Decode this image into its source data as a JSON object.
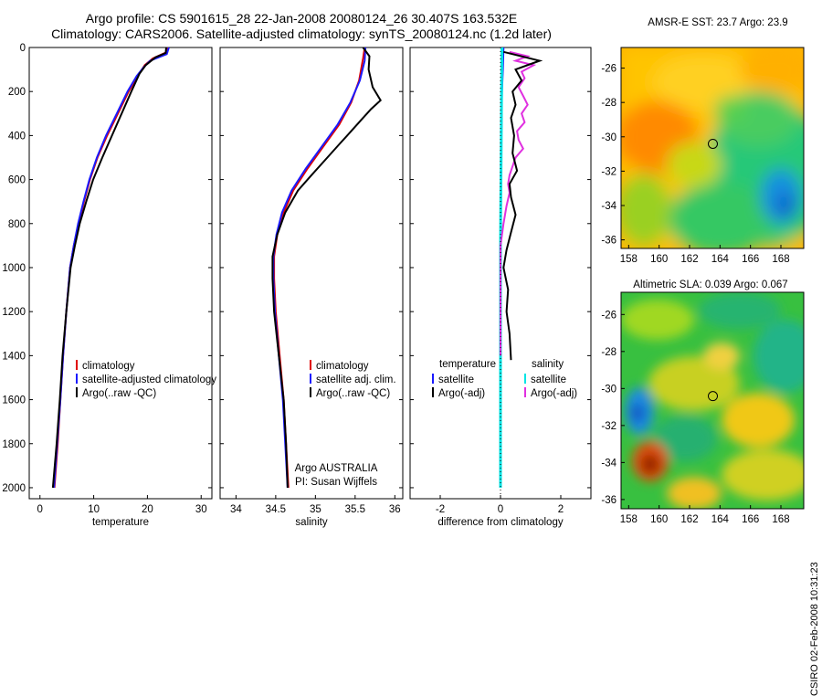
{
  "figure": {
    "title_line1": "Argo profile: CS 5901615_28 22-Jan-2008 20080124_26 30.407S 163.532E",
    "title_line2": "Climatology: CARS2006. Satellite-adjusted climatology: synTS_20080124.nc (1.2d later)",
    "side_label": "CSIRO 02-Feb-2008 10:31:23"
  },
  "colors": {
    "climatology": "#e00000",
    "satellite": "#1a1aff",
    "argo": "#000000",
    "cyan": "#00e5e5",
    "magenta": "#e030e0"
  },
  "chart_data": [
    {
      "type": "line",
      "panel": "temperature",
      "xlabel": "temperature",
      "ylabel": "",
      "xlim": [
        -2,
        32
      ],
      "ylim": [
        2050,
        0
      ],
      "xticks": [
        0,
        10,
        20,
        30
      ],
      "yticks": [
        0,
        200,
        400,
        600,
        800,
        1000,
        1200,
        1400,
        1600,
        1800,
        2000
      ],
      "y_reversed": true,
      "legend": [
        "climatology",
        "satellite-adjusted climatology",
        "Argo(..raw -QC)"
      ],
      "series": [
        {
          "name": "climatology",
          "color": "climatology",
          "points": [
            [
              23.8,
              0
            ],
            [
              23.7,
              20
            ],
            [
              21,
              50
            ],
            [
              19.5,
              80
            ],
            [
              18.2,
              130
            ],
            [
              16.5,
              200
            ],
            [
              14.5,
              300
            ],
            [
              12.5,
              400
            ],
            [
              10.7,
              500
            ],
            [
              9.3,
              600
            ],
            [
              8.2,
              700
            ],
            [
              7.2,
              800
            ],
            [
              6.3,
              900
            ],
            [
              5.6,
              1000
            ],
            [
              4.9,
              1200
            ],
            [
              4.3,
              1400
            ],
            [
              3.8,
              1600
            ],
            [
              3.3,
              1800
            ],
            [
              2.7,
              2000
            ]
          ]
        },
        {
          "name": "satellite-adjusted climatology",
          "color": "satellite",
          "points": [
            [
              24,
              0
            ],
            [
              23.6,
              30
            ],
            [
              20.5,
              60
            ],
            [
              19.3,
              90
            ],
            [
              18,
              130
            ],
            [
              16.3,
              200
            ],
            [
              14.3,
              300
            ],
            [
              12.3,
              400
            ],
            [
              10.6,
              500
            ],
            [
              9.2,
              600
            ],
            [
              8.1,
              700
            ],
            [
              7.1,
              800
            ],
            [
              6.3,
              900
            ],
            [
              5.6,
              1000
            ],
            [
              4.9,
              1200
            ],
            [
              4.3,
              1400
            ],
            [
              3.8,
              1600
            ],
            [
              3.2,
              1800
            ],
            [
              2.6,
              2000
            ]
          ]
        },
        {
          "name": "Argo(..raw -QC)",
          "color": "argo",
          "points": [
            [
              23.5,
              0
            ],
            [
              23.4,
              25
            ],
            [
              21.5,
              45
            ],
            [
              19.7,
              80
            ],
            [
              18.5,
              120
            ],
            [
              17,
              200
            ],
            [
              15.2,
              300
            ],
            [
              13.4,
              400
            ],
            [
              11.6,
              500
            ],
            [
              9.9,
              600
            ],
            [
              8.6,
              700
            ],
            [
              7.4,
              800
            ],
            [
              6.5,
              900
            ],
            [
              5.7,
              1000
            ],
            [
              4.9,
              1200
            ],
            [
              4.2,
              1400
            ],
            [
              3.7,
              1600
            ],
            [
              3.1,
              1800
            ],
            [
              2.4,
              2000
            ]
          ]
        }
      ]
    },
    {
      "type": "line",
      "panel": "salinity",
      "xlabel": "salinity",
      "xlim": [
        33.8,
        36.1
      ],
      "ylim": [
        2050,
        0
      ],
      "xticks": [
        34,
        34.5,
        35,
        35.5,
        36
      ],
      "y_reversed": true,
      "legend": [
        "climatology",
        "satellite adj. clim.",
        "Argo(..raw -QC)"
      ],
      "annotation": [
        "Argo AUSTRALIA",
        "PI: Susan Wijffels"
      ],
      "series": [
        {
          "name": "climatology",
          "color": "climatology",
          "points": [
            [
              35.62,
              0
            ],
            [
              35.6,
              50
            ],
            [
              35.55,
              150
            ],
            [
              35.45,
              250
            ],
            [
              35.3,
              350
            ],
            [
              35.1,
              450
            ],
            [
              34.9,
              550
            ],
            [
              34.72,
              650
            ],
            [
              34.6,
              750
            ],
            [
              34.52,
              850
            ],
            [
              34.48,
              950
            ],
            [
              34.48,
              1050
            ],
            [
              34.5,
              1200
            ],
            [
              34.55,
              1400
            ],
            [
              34.6,
              1600
            ],
            [
              34.63,
              1800
            ],
            [
              34.66,
              2000
            ]
          ]
        },
        {
          "name": "satellite adj. clim.",
          "color": "satellite",
          "points": [
            [
              35.63,
              0
            ],
            [
              35.62,
              60
            ],
            [
              35.56,
              150
            ],
            [
              35.44,
              250
            ],
            [
              35.28,
              350
            ],
            [
              35.08,
              450
            ],
            [
              34.88,
              550
            ],
            [
              34.7,
              650
            ],
            [
              34.58,
              750
            ],
            [
              34.51,
              850
            ],
            [
              34.47,
              950
            ],
            [
              34.47,
              1050
            ],
            [
              34.49,
              1200
            ],
            [
              34.54,
              1400
            ],
            [
              34.59,
              1600
            ],
            [
              34.62,
              1800
            ],
            [
              34.65,
              2000
            ]
          ]
        },
        {
          "name": "Argo(..raw -QC)",
          "color": "argo",
          "points": [
            [
              35.6,
              0
            ],
            [
              35.68,
              40
            ],
            [
              35.67,
              100
            ],
            [
              35.72,
              180
            ],
            [
              35.82,
              240
            ],
            [
              35.7,
              280
            ],
            [
              35.6,
              320
            ],
            [
              35.45,
              380
            ],
            [
              35.3,
              440
            ],
            [
              35.15,
              500
            ],
            [
              34.95,
              580
            ],
            [
              34.78,
              650
            ],
            [
              34.62,
              750
            ],
            [
              34.52,
              850
            ],
            [
              34.46,
              950
            ],
            [
              34.46,
              1050
            ],
            [
              34.48,
              1200
            ],
            [
              34.54,
              1400
            ],
            [
              34.6,
              1600
            ],
            [
              34.63,
              1800
            ],
            [
              34.65,
              2000
            ]
          ]
        }
      ]
    },
    {
      "type": "line",
      "panel": "difference",
      "xlabel": "difference from climatology",
      "xlim": [
        -3,
        3
      ],
      "ylim": [
        2050,
        0
      ],
      "xticks": [
        -2,
        0,
        2
      ],
      "y_reversed": true,
      "legend_left_title": "temperature",
      "legend_left": [
        "satellite",
        "Argo(-adj)"
      ],
      "legend_right_title": "salinity",
      "legend_right": [
        "satellite",
        "Argo(-adj)"
      ],
      "series": [
        {
          "name": "satellite",
          "group": "temperature",
          "color": "satellite",
          "points": [
            [
              0.1,
              0
            ],
            [
              0.08,
              100
            ],
            [
              0.05,
              200
            ],
            [
              0.04,
              300
            ],
            [
              0.03,
              400
            ],
            [
              0.02,
              500
            ],
            [
              0.02,
              600
            ],
            [
              0.01,
              700
            ],
            [
              0.01,
              800
            ],
            [
              0.0,
              900
            ],
            [
              0,
              1000
            ]
          ]
        },
        {
          "name": "satellite",
          "group": "salinity",
          "color": "cyan",
          "points": [
            [
              0.05,
              0
            ],
            [
              0.04,
              150
            ],
            [
              0.03,
              300
            ],
            [
              0.02,
              500
            ],
            [
              0.01,
              700
            ],
            [
              0.0,
              900
            ],
            [
              0.0,
              1200
            ],
            [
              0.0,
              1600
            ],
            [
              0.0,
              2000
            ]
          ]
        },
        {
          "name": "Argo(-adj)",
          "group": "salinity",
          "color": "magenta",
          "points": [
            [
              0.3,
              20
            ],
            [
              0.9,
              40
            ],
            [
              0.5,
              60
            ],
            [
              1.1,
              80
            ],
            [
              0.7,
              110
            ],
            [
              0.8,
              140
            ],
            [
              0.6,
              180
            ],
            [
              0.75,
              220
            ],
            [
              0.9,
              260
            ],
            [
              0.7,
              300
            ],
            [
              0.8,
              340
            ],
            [
              0.55,
              380
            ],
            [
              0.6,
              420
            ],
            [
              0.75,
              460
            ],
            [
              0.5,
              500
            ],
            [
              0.4,
              540
            ],
            [
              0.3,
              580
            ],
            [
              0.25,
              620
            ],
            [
              0.3,
              660
            ],
            [
              0.2,
              720
            ],
            [
              0.1,
              800
            ],
            [
              0,
              900
            ],
            [
              0,
              1400
            ]
          ]
        },
        {
          "name": "Argo(-adj)",
          "group": "temperature",
          "color": "argo",
          "points": [
            [
              0.1,
              20
            ],
            [
              1.3,
              60
            ],
            [
              0.5,
              100
            ],
            [
              0.7,
              150
            ],
            [
              0.4,
              200
            ],
            [
              0.5,
              260
            ],
            [
              0.35,
              320
            ],
            [
              0.45,
              400
            ],
            [
              0.4,
              480
            ],
            [
              0.55,
              560
            ],
            [
              0.3,
              620
            ],
            [
              0.35,
              680
            ],
            [
              0.5,
              760
            ],
            [
              0.35,
              840
            ],
            [
              0.2,
              920
            ],
            [
              0.1,
              1000
            ],
            [
              0.25,
              1100
            ],
            [
              0.2,
              1200
            ],
            [
              0.3,
              1300
            ],
            [
              0.35,
              1420
            ]
          ]
        }
      ]
    },
    {
      "type": "heatmap",
      "panel": "sst-map",
      "title": "AMSR-E SST: 23.7 Argo: 23.9",
      "xticks": [
        158,
        160,
        162,
        164,
        166,
        168
      ],
      "yticks": [
        -26,
        -28,
        -30,
        -32,
        -34,
        -36
      ],
      "xlim": [
        157.5,
        169.5
      ],
      "ylim": [
        -36.5,
        -24.8
      ],
      "argo_position": [
        163.53,
        -30.41
      ]
    },
    {
      "type": "heatmap",
      "panel": "sla-map",
      "title": "Altimetric SLA: 0.039 Argo: 0.067",
      "xticks": [
        158,
        160,
        162,
        164,
        166,
        168
      ],
      "yticks": [
        -26,
        -28,
        -30,
        -32,
        -34,
        -36
      ],
      "xlim": [
        157.5,
        169.5
      ],
      "ylim": [
        -36.5,
        -24.8
      ],
      "argo_position": [
        163.53,
        -30.41
      ]
    }
  ]
}
